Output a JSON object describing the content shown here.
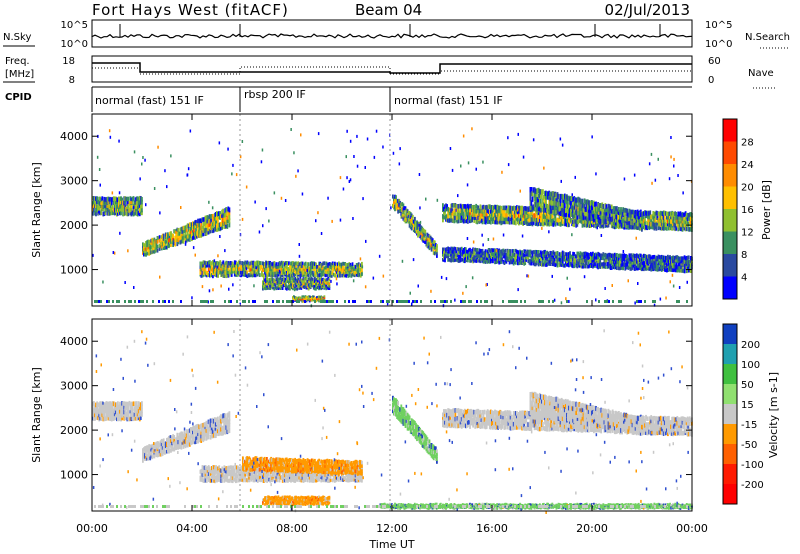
{
  "header": {
    "station": "Fort Hays West (fitACF)",
    "beam": "Beam 04",
    "date": "02/Jul/2013"
  },
  "strips": {
    "nsky_label": "N.Sky",
    "nsky_ticks": [
      "10^5",
      "10^0"
    ],
    "nsearch_label": "N.Search",
    "nsearch_ticks": [
      "10^5",
      "10^0"
    ],
    "freq_label_1": "Freq.",
    "freq_label_2": "[MHz]",
    "freq_ticks": [
      "18",
      "8"
    ],
    "nave_label": "Nave",
    "nave_ticks": [
      "60",
      "0"
    ],
    "cpid_label": "CPID",
    "cpid_segments": [
      {
        "label": "normal (fast) 151 IF",
        "start_h": 0,
        "end_h": 6
      },
      {
        "label": "rbsp 200 IF",
        "start_h": 6,
        "end_h": 12
      },
      {
        "label": "normal (fast) 151 IF",
        "start_h": 12,
        "end_h": 24
      }
    ]
  },
  "chart_data": [
    {
      "type": "heatmap",
      "name": "power",
      "ylabel": "Slant Range [km]",
      "y_ticks": [
        "4000",
        "3000",
        "2000",
        "1000"
      ],
      "ylim": [
        180,
        4500
      ],
      "xlim": [
        0,
        24
      ],
      "colorbar_label": "Power [dB]",
      "colorbar_ticks": [
        "28",
        "24",
        "20",
        "16",
        "12",
        "8",
        "4"
      ],
      "colorbar_colors": [
        "#ff0000",
        "#ff4a00",
        "#ff8c00",
        "#ffc000",
        "#90c030",
        "#3a9060",
        "#2a4aa0",
        "#0000ff"
      ],
      "bands": [
        {
          "t0": 0.0,
          "t1": 2.0,
          "r0": 2250,
          "r1": 2650,
          "r0b": 2250,
          "r1b": 2650,
          "strength": 0.55
        },
        {
          "t0": 2.0,
          "t1": 5.5,
          "r0": 1300,
          "r1": 1600,
          "r0b": 2000,
          "r1b": 2450,
          "strength": 0.7
        },
        {
          "t0": 4.3,
          "t1": 10.8,
          "r0": 850,
          "r1": 1200,
          "r0b": 850,
          "r1b": 1150,
          "strength": 0.6
        },
        {
          "t0": 6.8,
          "t1": 9.5,
          "r0": 550,
          "r1": 800,
          "r0b": 550,
          "r1b": 800,
          "strength": 0.5
        },
        {
          "t0": 8.0,
          "t1": 9.3,
          "r0": 250,
          "r1": 360,
          "r0b": 250,
          "r1b": 360,
          "strength": 0.9
        },
        {
          "t0": 12.0,
          "t1": 13.8,
          "r0": 2400,
          "r1": 2750,
          "r0b": 1250,
          "r1b": 1550,
          "strength": 0.6
        },
        {
          "t0": 14.0,
          "t1": 24.0,
          "r0": 2100,
          "r1": 2500,
          "r0b": 1900,
          "r1b": 2300,
          "strength": 0.6
        },
        {
          "t0": 17.5,
          "t1": 22.0,
          "r0": 2400,
          "r1": 2900,
          "r0b": 1900,
          "r1b": 2300,
          "strength": 0.4
        },
        {
          "t0": 14.0,
          "t1": 24.0,
          "r0": 1200,
          "r1": 1500,
          "r0b": 950,
          "r1b": 1300,
          "strength": 0.25
        }
      ]
    },
    {
      "type": "heatmap",
      "name": "velocity",
      "ylabel": "Slant Range [km]",
      "y_ticks": [
        "4000",
        "3000",
        "2000",
        "1000"
      ],
      "ylim": [
        180,
        4500
      ],
      "xlim": [
        0,
        24
      ],
      "colorbar_label": "Velocity [m s-1]",
      "colorbar_ticks": [
        "200",
        "100",
        "50",
        "15",
        "-15",
        "-50",
        "-100",
        "-200"
      ],
      "colorbar_colors": [
        "#1040c0",
        "#20a0b0",
        "#40c040",
        "#90e070",
        "#c8c8c8",
        "#ff9a00",
        "#ff6000",
        "#ff1a00",
        "#ff0000"
      ],
      "bands": [
        {
          "t0": 0.0,
          "t1": 2.0,
          "r0": 2250,
          "r1": 2650,
          "r0b": 2250,
          "r1b": 2650,
          "kind": "gray"
        },
        {
          "t0": 2.0,
          "t1": 5.5,
          "r0": 1300,
          "r1": 1600,
          "r0b": 2000,
          "r1b": 2450,
          "kind": "gray"
        },
        {
          "t0": 4.3,
          "t1": 10.8,
          "r0": 850,
          "r1": 1200,
          "r0b": 850,
          "r1b": 1150,
          "kind": "gray"
        },
        {
          "t0": 6.0,
          "t1": 10.8,
          "r0": 1100,
          "r1": 1400,
          "r0b": 1000,
          "r1b": 1300,
          "kind": "orange"
        },
        {
          "t0": 6.8,
          "t1": 9.5,
          "r0": 300,
          "r1": 480,
          "r0b": 300,
          "r1b": 480,
          "kind": "orange"
        },
        {
          "t0": 12.0,
          "t1": 13.8,
          "r0": 2400,
          "r1": 2800,
          "r0b": 1250,
          "r1b": 1550,
          "kind": "green"
        },
        {
          "t0": 14.0,
          "t1": 24.0,
          "r0": 2100,
          "r1": 2500,
          "r0b": 1900,
          "r1b": 2300,
          "kind": "gray"
        },
        {
          "t0": 17.5,
          "t1": 22.0,
          "r0": 2400,
          "r1": 2900,
          "r0b": 1900,
          "r1b": 2300,
          "kind": "gray"
        },
        {
          "t0": 11.5,
          "t1": 24.0,
          "r0": 200,
          "r1": 300,
          "r0b": 200,
          "r1b": 300,
          "kind": "green"
        }
      ]
    }
  ],
  "x_axis": {
    "ticks": [
      "00:00",
      "04:00",
      "08:00",
      "12:00",
      "16:00",
      "20:00",
      "00:00"
    ],
    "label": "Time UT"
  }
}
